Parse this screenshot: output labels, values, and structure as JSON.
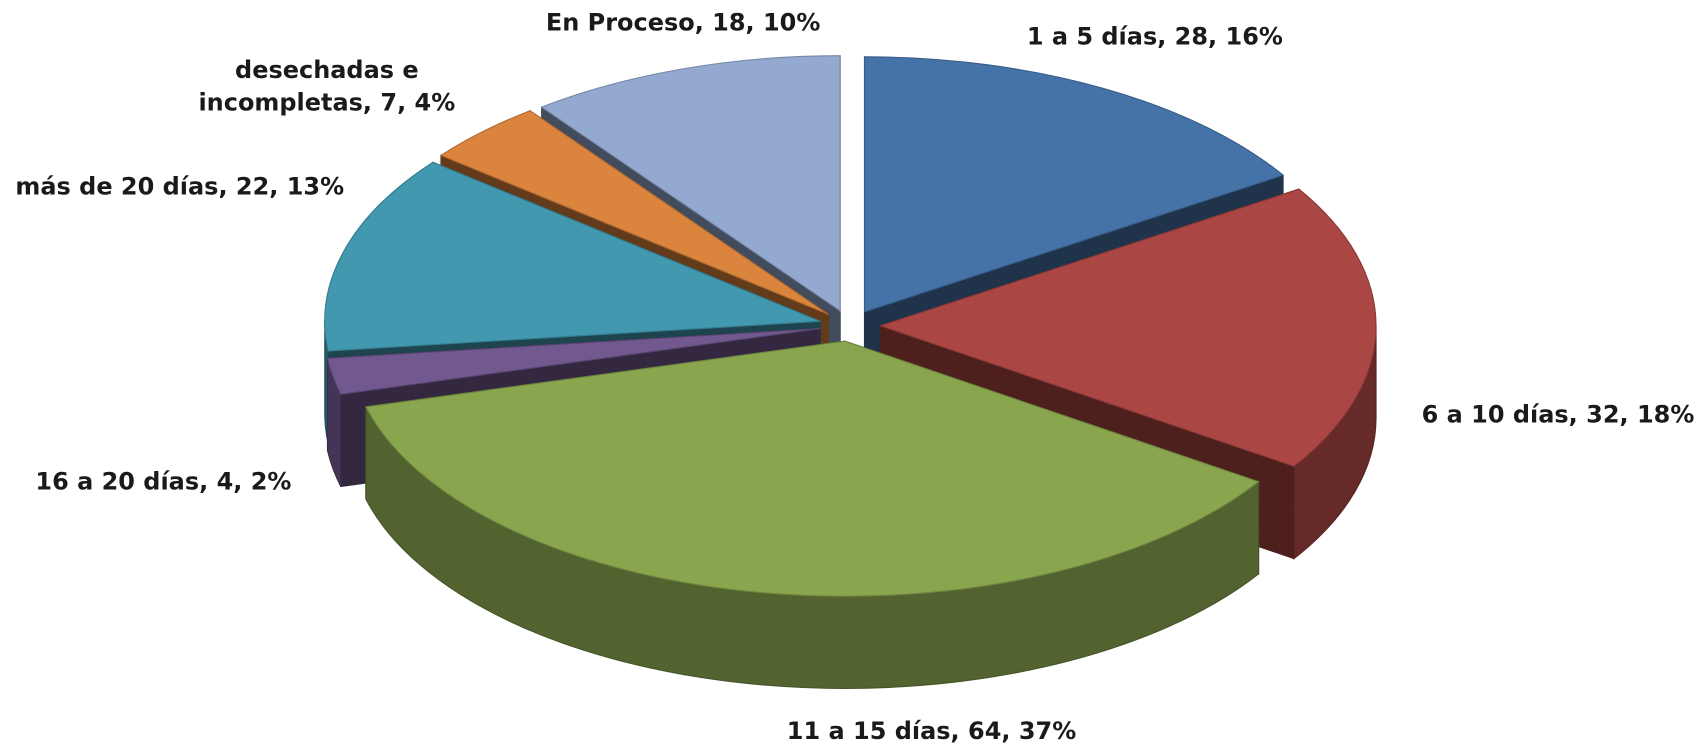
{
  "chart_data": {
    "type": "pie3d",
    "categories": [
      "1 a 5 días",
      "6 a 10 días",
      "11 a 15 días",
      "16 a 20 días",
      "más de 20 días",
      "desechadas e incompletas",
      "En Proceso"
    ],
    "values": [
      28,
      32,
      64,
      4,
      22,
      7,
      18
    ],
    "percent_labels": [
      "16%",
      "18%",
      "37%",
      "2%",
      "13%",
      "4%",
      "10%"
    ],
    "label_separator": ", ",
    "colors": [
      "#4572a7",
      "#aa4643",
      "#89a54e",
      "#71588f",
      "#4198af",
      "#db843d",
      "#93a9cf"
    ],
    "exploded": true
  }
}
